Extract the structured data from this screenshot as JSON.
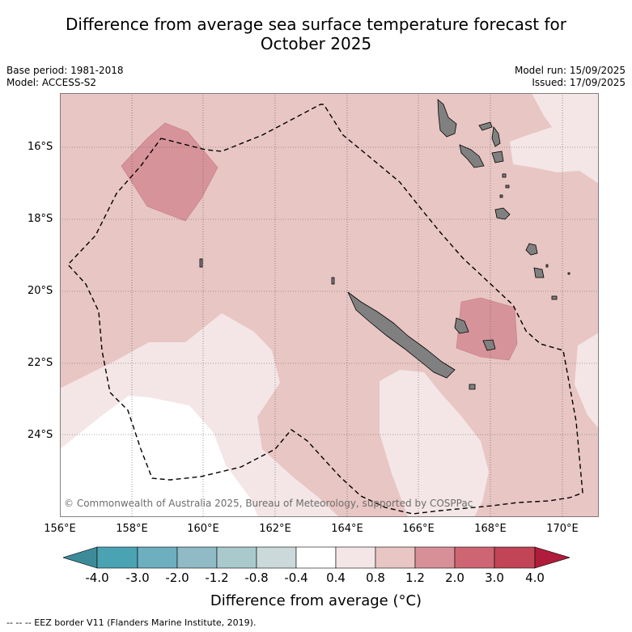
{
  "title_line1": "Difference from average sea surface temperature forecast for",
  "title_line2": "October 2025",
  "base_period": "Base period: 1981-2018",
  "model": "Model: ACCESS-S2",
  "model_run": "Model run: 15/09/2025",
  "issued": "Issued: 17/09/2025",
  "lat_labels": [
    "16°S",
    "18°S",
    "20°S",
    "22°S",
    "24°S"
  ],
  "lon_labels": [
    "156°E",
    "158°E",
    "160°E",
    "162°E",
    "164°E",
    "166°E",
    "168°E",
    "170°E"
  ],
  "copyright": "© Commonwealth of Australia 2025, Bureau of Meteorology, supported by COSPPac",
  "colorbar": {
    "ticks": [
      "-4.0",
      "-3.0",
      "-2.0",
      "-1.2",
      "-0.8",
      "-0.4",
      "0.4",
      "0.8",
      "1.2",
      "2.0",
      "3.0",
      "4.0"
    ],
    "colors": [
      "#3d8b99",
      "#4aa3b3",
      "#6dafbf",
      "#8fbac6",
      "#aac9cd",
      "#cbd9db",
      "#ffffff",
      "#f4e6e6",
      "#e8c6c3",
      "#d89098",
      "#cd6672",
      "#c14556",
      "#b01c3b"
    ],
    "label": "Difference from average (°C)"
  },
  "legend_note": "-- -- -- EEZ border V11 (Flanders Marine Institute, 2019)."
}
